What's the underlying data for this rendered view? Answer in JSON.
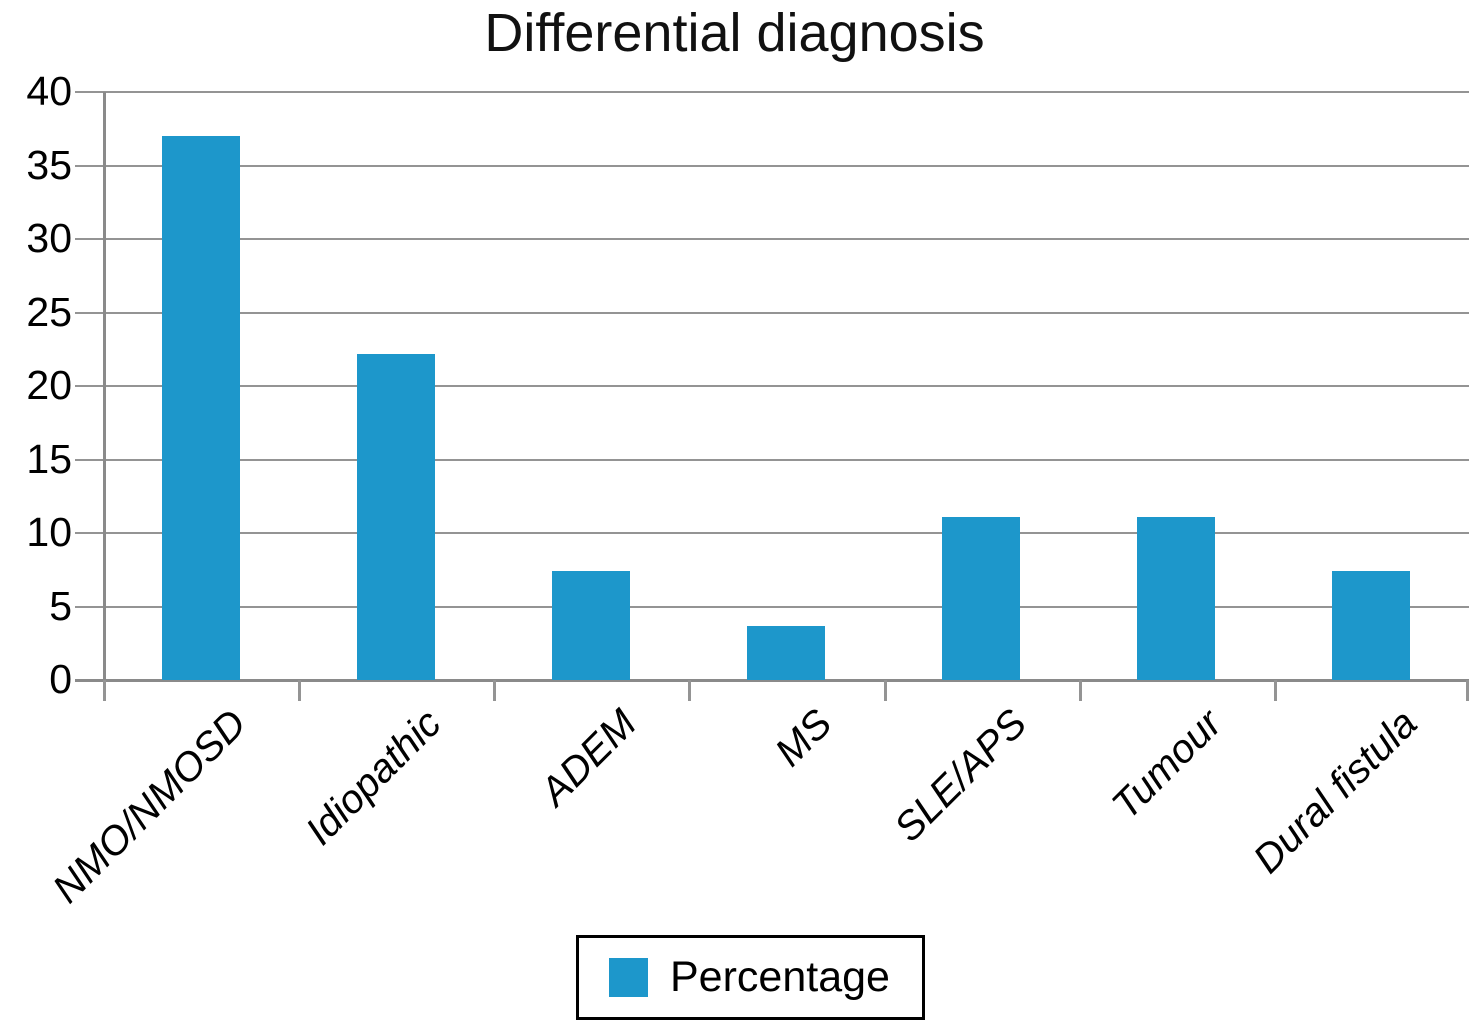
{
  "chart_data": {
    "type": "bar",
    "title": "Differential diagnosis",
    "categories": [
      "NMO/NMOSD",
      "Idiopathic",
      "ADEM",
      "MS",
      "SLE/APS",
      "Tumour",
      "Dural fistula"
    ],
    "values": [
      37.0,
      22.2,
      7.4,
      3.7,
      11.1,
      11.1,
      7.4
    ],
    "series_name": "Percentage",
    "xlabel": "",
    "ylabel": "",
    "ylim": [
      0,
      40
    ],
    "yticks": [
      0,
      5,
      10,
      15,
      20,
      25,
      30,
      35,
      40
    ],
    "grid": "horizontal",
    "legend_position": "bottom-center",
    "bar_color": "#1D97CB",
    "grid_color": "#949494",
    "axis_color": "#8a8a8a",
    "text_color": "#000000",
    "legend_border_color": "#000000"
  }
}
